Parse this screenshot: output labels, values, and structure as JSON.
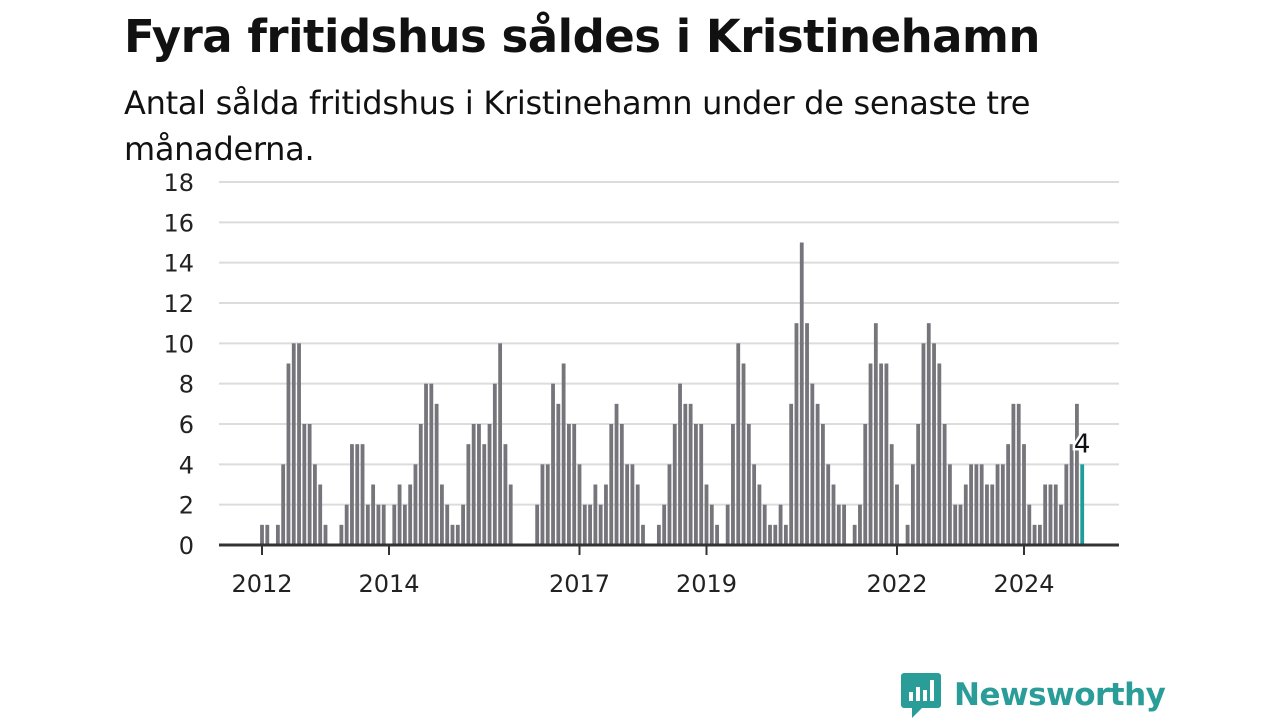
{
  "title": "Fyra fritidshus såldes i Kristinehamn",
  "subtitle": "Antal sålda fritidshus i Kristinehamn under de senaste tre månaderna.",
  "brand": {
    "name": "Newsworthy",
    "color": "#2a9d99",
    "icon": "chart-speech-bubble-icon"
  },
  "colors": {
    "bar": "#75757b",
    "highlight": "#1f9d99",
    "grid": "#dcdcdc",
    "axis": "#333333"
  },
  "chart_data": {
    "type": "bar",
    "ylim": [
      0,
      18
    ],
    "yticks": [
      0,
      2,
      4,
      6,
      8,
      10,
      12,
      14,
      16,
      18
    ],
    "xticks": [
      {
        "label": "2012",
        "at": "2012-01"
      },
      {
        "label": "2014",
        "at": "2014-01"
      },
      {
        "label": "2017",
        "at": "2017-01"
      },
      {
        "label": "2019",
        "at": "2019-01"
      },
      {
        "label": "2022",
        "at": "2022-01"
      },
      {
        "label": "2024",
        "at": "2024-01"
      }
    ],
    "start": "2011-02",
    "values": [
      0,
      0,
      0,
      0,
      0,
      0,
      0,
      0,
      0,
      0,
      0,
      1,
      1,
      0,
      1,
      4,
      9,
      10,
      10,
      6,
      6,
      4,
      3,
      1,
      0,
      0,
      1,
      2,
      5,
      5,
      5,
      2,
      3,
      2,
      2,
      0,
      2,
      3,
      2,
      3,
      4,
      6,
      8,
      8,
      7,
      3,
      2,
      1,
      1,
      2,
      5,
      6,
      6,
      5,
      6,
      8,
      10,
      5,
      3,
      0,
      0,
      0,
      0,
      2,
      4,
      4,
      8,
      7,
      9,
      6,
      6,
      4,
      2,
      2,
      3,
      2,
      3,
      6,
      7,
      6,
      4,
      4,
      3,
      1,
      0,
      0,
      1,
      2,
      4,
      6,
      8,
      7,
      7,
      6,
      6,
      3,
      2,
      1,
      0,
      2,
      6,
      10,
      9,
      6,
      4,
      3,
      2,
      1,
      1,
      2,
      1,
      7,
      11,
      15,
      11,
      8,
      7,
      6,
      4,
      3,
      2,
      2,
      0,
      1,
      2,
      6,
      9,
      11,
      9,
      9,
      5,
      3,
      0,
      1,
      4,
      6,
      10,
      11,
      10,
      9,
      6,
      4,
      2,
      2,
      3,
      4,
      4,
      4,
      3,
      3,
      4,
      4,
      5,
      7,
      7,
      5,
      2,
      1,
      1,
      3,
      3,
      3,
      2,
      4,
      5,
      7,
      4
    ],
    "highlight": {
      "value": 4,
      "label": "4"
    }
  }
}
